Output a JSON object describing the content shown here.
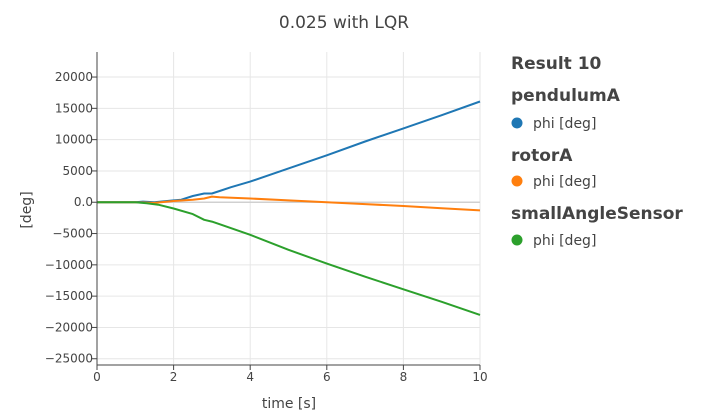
{
  "chart_data": {
    "type": "line",
    "title": "0.025 with LQR",
    "xlabel": "time [s]",
    "ylabel": "[deg]",
    "xlim": [
      0,
      10
    ],
    "ylim": [
      -26000,
      24000
    ],
    "x_ticks": [
      0,
      2,
      4,
      6,
      8,
      10
    ],
    "y_ticks": [
      -25000,
      -20000,
      -15000,
      -10000,
      -5000,
      0,
      5000,
      10000,
      15000,
      20000
    ],
    "x_tick_labels": [
      "0",
      "2",
      "4",
      "6",
      "8",
      "10"
    ],
    "y_tick_labels": [
      "−25000",
      "−20000",
      "−15000",
      "−10000",
      "−5000",
      "0.0",
      "5000",
      "10000",
      "15000",
      "20000"
    ],
    "grid": true,
    "legend": {
      "title": "Result 10",
      "position": "right",
      "groups": [
        {
          "name": "pendulumA",
          "item": "phi [deg]"
        },
        {
          "name": "rotorA",
          "item": "phi [deg]"
        },
        {
          "name": "smallAngleSensor",
          "item": "phi [deg]"
        }
      ]
    },
    "series": [
      {
        "group": "pendulumA",
        "name": "phi [deg]",
        "color": "#1f77b4",
        "x": [
          0,
          1.0,
          1.2,
          1.5,
          2.0,
          2.2,
          2.5,
          2.8,
          3.0,
          3.2,
          3.5,
          4.0,
          5.0,
          6.0,
          7.0,
          8.0,
          9.0,
          10.0
        ],
        "y": [
          0,
          0,
          100,
          0,
          300,
          400,
          1000,
          1400,
          1400,
          1800,
          2400,
          3300,
          5400,
          7500,
          9700,
          11800,
          13900,
          16100
        ]
      },
      {
        "group": "rotorA",
        "name": "phi [deg]",
        "color": "#ff7f0e",
        "x": [
          0,
          1.0,
          1.5,
          2.0,
          2.5,
          2.8,
          3.0,
          3.2,
          4.0,
          5.0,
          6.0,
          7.0,
          8.0,
          9.0,
          10.0
        ],
        "y": [
          0,
          0,
          -100,
          200,
          400,
          600,
          900,
          800,
          600,
          300,
          0,
          -300,
          -600,
          -950,
          -1300
        ]
      },
      {
        "group": "smallAngleSensor",
        "name": "phi [deg]",
        "color": "#2ca02c",
        "x": [
          0,
          1.0,
          1.3,
          1.6,
          2.0,
          2.5,
          2.8,
          3.0,
          3.2,
          4.0,
          5.0,
          6.0,
          7.0,
          8.0,
          9.0,
          10.0
        ],
        "y": [
          0,
          0,
          -150,
          -400,
          -1000,
          -1900,
          -2800,
          -3100,
          -3500,
          -5200,
          -7600,
          -9800,
          -11900,
          -13900,
          -15900,
          -18000
        ]
      }
    ]
  }
}
